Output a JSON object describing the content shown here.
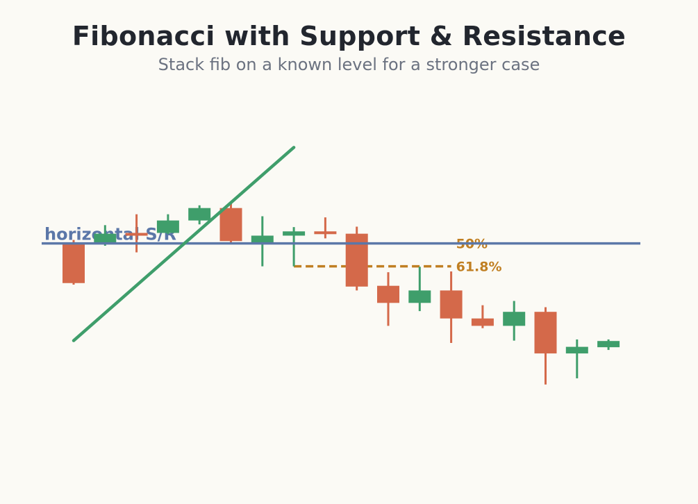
{
  "title": "Fibonacci with Support & Resistance",
  "subtitle": "Stack fib on a known level for a stronger case",
  "colors": {
    "bull": "#3f9e6b",
    "bear": "#d4694a",
    "support": "#5b77a8",
    "fib": "#c07f22",
    "text": "#22262e",
    "subtext": "#6b7280",
    "background": "#fbfaf5"
  },
  "chart_data": {
    "type": "candlestick",
    "ylim": [
      0,
      100
    ],
    "grid": false,
    "candles": [
      {
        "open": 60.4,
        "close": 50.4,
        "high": 61.5,
        "low": 50.0
      },
      {
        "open": 60.4,
        "close": 63.1,
        "high": 65.3,
        "low": 60.0
      },
      {
        "open": 63.3,
        "close": 62.9,
        "high": 68.1,
        "low": 58.3
      },
      {
        "open": 63.3,
        "close": 66.5,
        "high": 68.1,
        "low": 63.0
      },
      {
        "open": 66.5,
        "close": 69.7,
        "high": 70.4,
        "low": 65.5
      },
      {
        "open": 69.7,
        "close": 61.2,
        "high": 71.1,
        "low": 60.4
      },
      {
        "open": 60.8,
        "close": 62.6,
        "high": 67.6,
        "low": 54.7
      },
      {
        "open": 62.6,
        "close": 63.7,
        "high": 64.8,
        "low": 54.7
      },
      {
        "open": 63.7,
        "close": 63.1,
        "high": 67.3,
        "low": 61.9
      },
      {
        "open": 63.1,
        "close": 49.5,
        "high": 64.9,
        "low": 48.5
      },
      {
        "open": 49.7,
        "close": 45.3,
        "high": 53.2,
        "low": 39.4
      },
      {
        "open": 45.3,
        "close": 48.5,
        "high": 54.6,
        "low": 43.2
      },
      {
        "open": 48.5,
        "close": 41.3,
        "high": 53.4,
        "low": 35.0
      },
      {
        "open": 41.3,
        "close": 39.4,
        "high": 44.7,
        "low": 38.8
      },
      {
        "open": 39.4,
        "close": 43.0,
        "high": 45.8,
        "low": 35.6
      },
      {
        "open": 43.0,
        "close": 32.3,
        "high": 44.2,
        "low": 24.3
      },
      {
        "open": 32.3,
        "close": 34.0,
        "high": 35.9,
        "low": 25.9
      },
      {
        "open": 33.9,
        "close": 35.5,
        "high": 35.9,
        "low": 33.2
      }
    ],
    "support_level": 60.6,
    "support_label": "horizontal S/R",
    "trendline": {
      "from": {
        "index": 0,
        "value": 35.6
      },
      "to": {
        "index": 7,
        "value": 85.3
      }
    },
    "fib_levels": [
      {
        "label": "50%",
        "value": 60.6,
        "from_index": 7.0,
        "to_index": 12.0
      },
      {
        "label": "61.8%",
        "value": 54.7,
        "from_index": 7.0,
        "to_index": 12.0
      }
    ]
  }
}
